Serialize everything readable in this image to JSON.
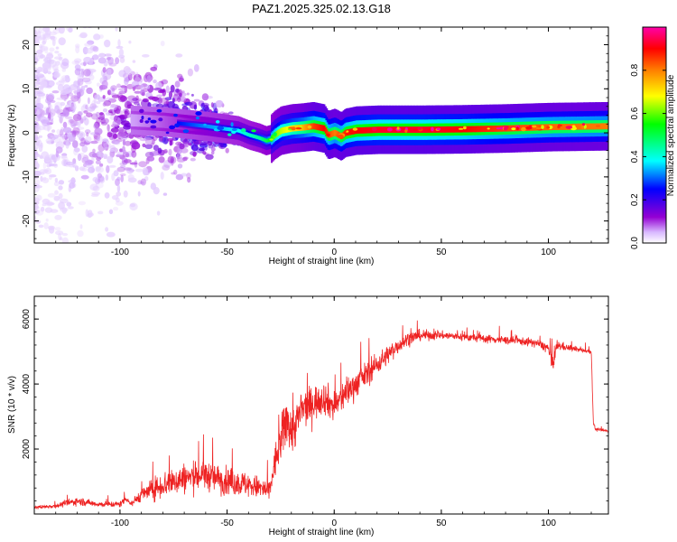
{
  "title": "PAZ1.2025.325.02.13.G18",
  "chart_data": [
    {
      "type": "heatmap",
      "xlabel": "Height of straight line (km)",
      "ylabel": "Frequency (Hz)",
      "xlim": [
        -140,
        128
      ],
      "ylim": [
        -25,
        24
      ],
      "xticks": [
        -100,
        -50,
        0,
        50,
        100
      ],
      "yticks": [
        -20,
        -10,
        0,
        10,
        20
      ],
      "colorbar": {
        "label": "Normalized spectral amplitude",
        "range": [
          0,
          1
        ],
        "ticks": [
          "0.0",
          "0.2",
          "0.4",
          "0.6",
          "0.8"
        ],
        "tick_values": [
          0.0,
          0.2,
          0.4,
          0.6,
          0.8
        ],
        "colormap": [
          "#ffffff",
          "#9400d3",
          "#0000ff",
          "#00ffff",
          "#00ff00",
          "#ffff00",
          "#ff7f00",
          "#ff0000",
          "#ff00aa"
        ]
      },
      "ridge": {
        "x": [
          -140,
          -120,
          -100,
          -80,
          -60,
          -45,
          -40,
          -35,
          -32,
          -30,
          -28,
          -25,
          -20,
          -15,
          -10,
          -5,
          -3,
          0,
          3,
          5,
          10,
          20,
          40,
          60,
          80,
          100,
          128
        ],
        "y": [
          4,
          3.5,
          3,
          2.5,
          1.5,
          0.5,
          -0.5,
          -1.2,
          -1.8,
          -1.5,
          -0.5,
          0.5,
          1,
          1.2,
          1.5,
          1,
          -0.5,
          0,
          -0.8,
          0,
          0.5,
          0.7,
          0.7,
          0.8,
          1,
          1.3,
          1.5
        ],
        "amplitude": [
          0.05,
          0.08,
          0.12,
          0.22,
          0.32,
          0.38,
          0.42,
          0.45,
          0.5,
          0.55,
          0.6,
          0.65,
          0.7,
          0.75,
          0.85,
          0.9,
          0.85,
          0.8,
          0.85,
          0.88,
          0.9,
          0.92,
          0.92,
          0.9,
          0.85,
          0.82,
          0.8
        ]
      }
    },
    {
      "type": "line",
      "xlabel": "Height of straight line (km)",
      "ylabel": "SNR (10 * v/v)",
      "xlim": [
        -140,
        128
      ],
      "ylim": [
        0,
        6700
      ],
      "xticks": [
        -100,
        -50,
        0,
        50,
        100
      ],
      "yticks": [
        2000,
        4000,
        6000
      ],
      "series": [
        {
          "color": "#ee2222",
          "x": [
            -140,
            -130,
            -120,
            -110,
            -100,
            -97,
            -95,
            -90,
            -80,
            -70,
            -60,
            -50,
            -40,
            -30,
            -28,
            -25,
            -22,
            -20,
            -15,
            -10,
            -5,
            0,
            5,
            10,
            15,
            20,
            25,
            30,
            35,
            40,
            50,
            60,
            70,
            80,
            90,
            95,
            100,
            102,
            104,
            110,
            115,
            120,
            121,
            122,
            128
          ],
          "y": [
            200,
            250,
            400,
            300,
            300,
            500,
            300,
            600,
            900,
            1100,
            1200,
            1000,
            900,
            700,
            1500,
            2200,
            3000,
            2500,
            3200,
            3400,
            3600,
            3300,
            3700,
            4000,
            4300,
            4600,
            4900,
            5200,
            5400,
            5500,
            5500,
            5450,
            5400,
            5350,
            5300,
            5250,
            5100,
            4500,
            5200,
            5100,
            5050,
            5000,
            2800,
            2600,
            2550
          ],
          "noise": [
            60,
            80,
            150,
            100,
            120,
            150,
            100,
            250,
            500,
            550,
            550,
            500,
            450,
            400,
            600,
            800,
            1000,
            900,
            700,
            650,
            600,
            600,
            550,
            500,
            450,
            400,
            350,
            300,
            250,
            200,
            150,
            150,
            150,
            150,
            150,
            150,
            200,
            400,
            200,
            100,
            80,
            80,
            80,
            60,
            50
          ]
        }
      ]
    }
  ]
}
